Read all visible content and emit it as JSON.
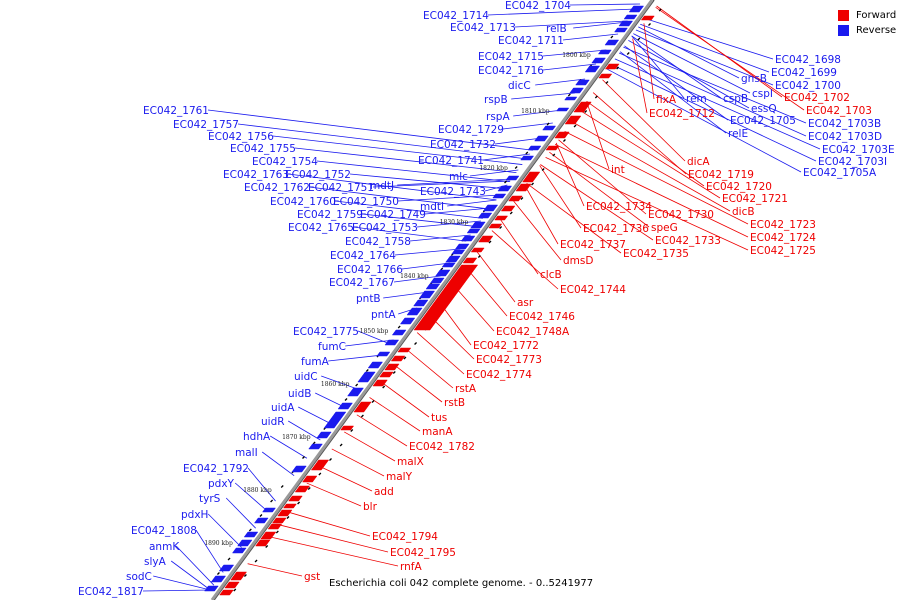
{
  "caption": "Escherichia coli 042 complete genome. - 0..5241977",
  "legend": [
    {
      "label": "Forward",
      "color": "#ee0000"
    },
    {
      "label": "Reverse",
      "color": "#1a1aee"
    }
  ],
  "colors": {
    "forward": "#ee0000",
    "reverse": "#1a1aee",
    "backbone": "#999999",
    "backbone_shadow": "#555555",
    "tick": "#000000"
  },
  "ticks": [
    "1800 kbp",
    "1810 kbp",
    "1820 kbp",
    "1830 kbp",
    "1840 kbp",
    "1850 kbp",
    "1860 kbp",
    "1870 kbp",
    "1880 kbp",
    "1890 kbp"
  ],
  "reverse_labels": [
    "EC042_1704",
    "EC042_1714",
    "EC042_1713",
    "relB",
    "EC042_1711",
    "EC042_1715",
    "EC042_1716",
    "dicC",
    "rspB",
    "rspA",
    "EC042_1729",
    "EC042_1732",
    "EC042_1741",
    "mlc",
    "EC042_1743",
    "mdtI",
    "mdtJ",
    "EC042_1761",
    "EC042_1757",
    "EC042_1756",
    "EC042_1755",
    "EC042_1754",
    "EC042_1763",
    "EC042_1752",
    "EC042_1762",
    "EC042_1751",
    "EC042_1760",
    "EC042_1750",
    "EC042_1759",
    "EC042_1749",
    "EC042_1765",
    "EC042_1753",
    "EC042_1758",
    "EC042_1764",
    "EC042_1766",
    "EC042_1767",
    "pntB",
    "pntA",
    "EC042_1775",
    "fumC",
    "fumA",
    "uidC",
    "uidB",
    "uidA",
    "uidR",
    "hdhA",
    "malI",
    "EC042_1792",
    "pdxY",
    "tyrS",
    "pdxH",
    "EC042_1808",
    "anmK",
    "slyA",
    "sodC",
    "EC042_1817",
    "EC042_1698",
    "EC042_1699",
    "EC042_1700",
    "gnsB",
    "cspI",
    "cspB",
    "essQ",
    "EC042_1705",
    "relE",
    "EC042_1703B",
    "EC042_1703D",
    "EC042_1703E",
    "EC042_1703I",
    "EC042_1705A",
    "rem"
  ],
  "forward_labels": [
    "EC042_1702",
    "EC042_1703",
    "flxA",
    "EC042_1712",
    "int",
    "dicA",
    "EC042_1719",
    "EC042_1720",
    "EC042_1721",
    "dicB",
    "EC042_1723",
    "EC042_1724",
    "EC042_1725",
    "EC042_1734",
    "EC042_1730",
    "speG",
    "EC042_1736",
    "EC042_1733",
    "EC042_1737",
    "EC042_1735",
    "dmsD",
    "clcB",
    "EC042_1744",
    "asr",
    "EC042_1746",
    "EC042_1748A",
    "EC042_1772",
    "EC042_1773",
    "EC042_1774",
    "rstA",
    "rstB",
    "tus",
    "manA",
    "EC042_1782",
    "malX",
    "malY",
    "add",
    "blr",
    "EC042_1794",
    "EC042_1795",
    "rnfA",
    "gst"
  ]
}
